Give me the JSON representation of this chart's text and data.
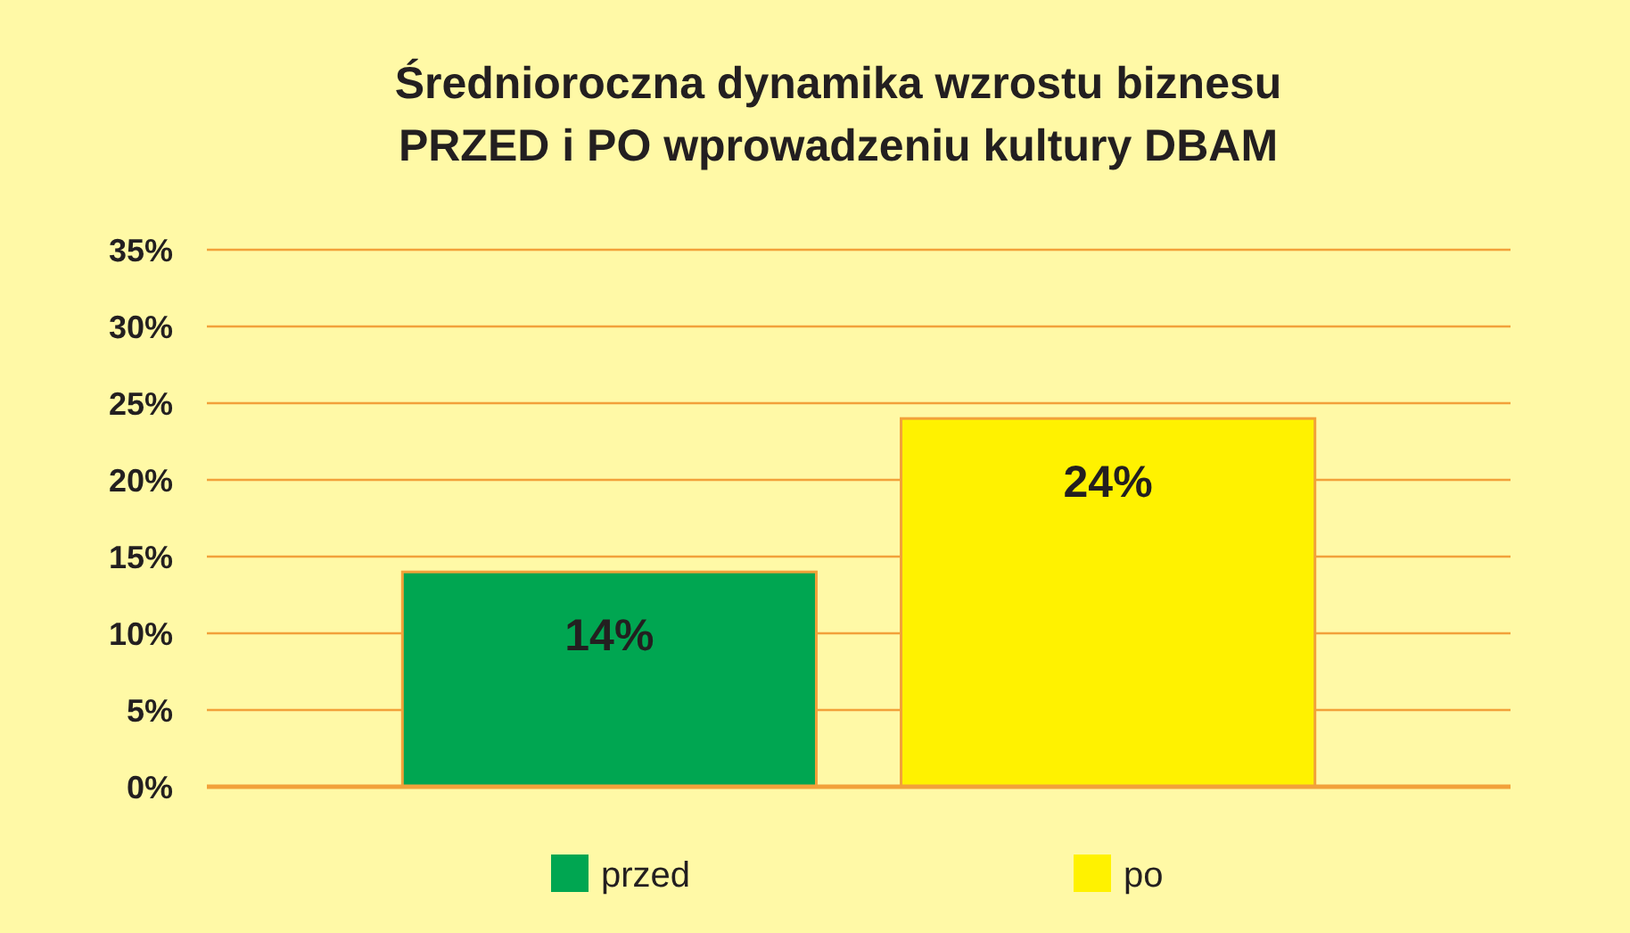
{
  "chart_data": {
    "type": "bar",
    "title": "Średnioroczna dynamika wzrostu biznesu\nPRZED i PO wprowadzeniu kultury DBAM",
    "categories": [
      null
    ],
    "series": [
      {
        "name": "przed",
        "color": "#00a651",
        "values": [
          14
        ],
        "value_labels": [
          "14%"
        ]
      },
      {
        "name": "po",
        "color": "#fff200",
        "values": [
          24
        ],
        "value_labels": [
          "24%"
        ]
      }
    ],
    "ylim": [
      0,
      35
    ],
    "yticks": [
      {
        "value": 0,
        "label": "0%"
      },
      {
        "value": 5,
        "label": "5%"
      },
      {
        "value": 10,
        "label": "10%"
      },
      {
        "value": 15,
        "label": "15%"
      },
      {
        "value": 20,
        "label": "20%"
      },
      {
        "value": 25,
        "label": "25%"
      },
      {
        "value": 30,
        "label": "30%"
      },
      {
        "value": 35,
        "label": "35%"
      }
    ],
    "grid": "y",
    "legend": "bottom",
    "tick_labels": "y"
  }
}
